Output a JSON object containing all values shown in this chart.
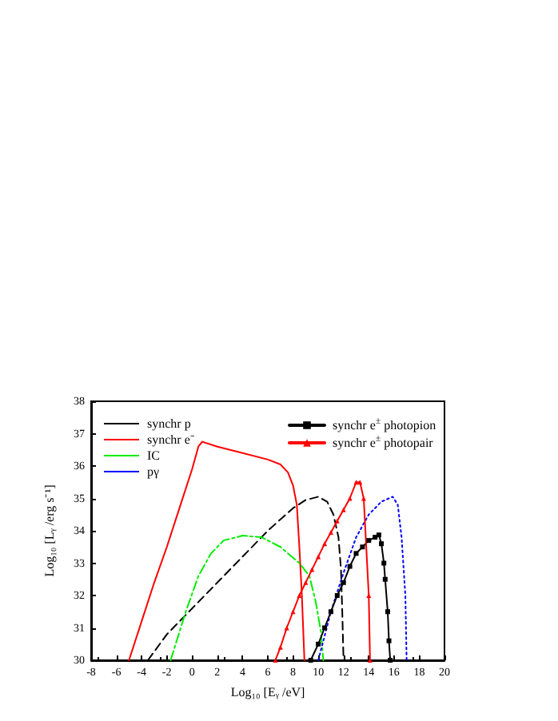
{
  "chart_data": {
    "type": "line",
    "xlabel": "Log₁₀ [Eᵧ /eV]",
    "ylabel": "Log₁₀ [Lᵧ /erg s⁻¹]",
    "xlim": [
      -8,
      20
    ],
    "xticks": [
      -8,
      -6,
      -4,
      -2,
      0,
      2,
      4,
      6,
      8,
      10,
      12,
      14,
      16,
      18,
      20
    ],
    "ylim": [
      30,
      38
    ],
    "yticks": [
      30,
      31,
      32,
      33,
      34,
      35,
      36,
      37,
      38
    ],
    "grid": false,
    "legend": "top",
    "series": [
      {
        "name": "synchr p",
        "color": "#000000",
        "line_style": "dashed",
        "marker": "none",
        "x": [
          -3.5,
          -2,
          0,
          2,
          4,
          6,
          8,
          9,
          10,
          10.7,
          11.2,
          11.6,
          11.8,
          11.9,
          12
        ],
        "values": [
          30,
          30.8,
          31.6,
          32.4,
          33.2,
          34.0,
          34.7,
          34.95,
          35.05,
          34.9,
          34.5,
          33.8,
          32.8,
          31.5,
          30
        ]
      },
      {
        "name": "synchr e⁻",
        "color": "#ff0000",
        "line_style": "solid",
        "marker": "none",
        "x": [
          -5,
          -4,
          -3,
          -2,
          -1,
          0,
          0.5,
          0.8,
          2,
          4,
          6,
          7,
          7.6,
          8,
          8.3,
          8.5,
          8.7,
          8.8,
          8.9
        ],
        "values": [
          30,
          31.2,
          32.4,
          33.5,
          34.7,
          35.9,
          36.6,
          36.75,
          36.6,
          36.4,
          36.2,
          36.05,
          35.8,
          35.4,
          34.8,
          33.5,
          32,
          31,
          30
        ]
      },
      {
        "name": "IC",
        "color": "#00ee00",
        "line_style": "dashdot",
        "marker": "none",
        "x": [
          -1.7,
          -0.5,
          0.5,
          1.5,
          2.5,
          4,
          5.5,
          7,
          8.5,
          9.3,
          9.8,
          10.2,
          10.4
        ],
        "values": [
          30,
          31.5,
          32.6,
          33.3,
          33.7,
          33.85,
          33.8,
          33.5,
          33.0,
          32.6,
          31.8,
          30.9,
          30
        ]
      },
      {
        "name": "pγ",
        "color": "#0000ff",
        "line_style": "dotted",
        "marker": "none",
        "x": [
          10,
          11,
          12,
          13,
          14,
          15,
          15.9,
          16.3,
          16.6,
          16.9,
          17
        ],
        "values": [
          30,
          31.5,
          32.7,
          33.8,
          34.5,
          34.9,
          35.05,
          34.8,
          33.8,
          32,
          30
        ]
      },
      {
        "name": "synchr e$^{±}$ photopion",
        "color": "#000000",
        "line_style": "solid",
        "marker": "square",
        "x": [
          9.4,
          10,
          10.5,
          11,
          11.5,
          12,
          12.5,
          13,
          13.5,
          14,
          14.5,
          14.8,
          15,
          15.2,
          15.3,
          15.5,
          15.6,
          15.7
        ],
        "values": [
          30,
          30.5,
          31,
          31.5,
          32,
          32.4,
          32.9,
          33.3,
          33.5,
          33.7,
          33.8,
          33.87,
          33.6,
          33.0,
          32.5,
          31.5,
          30.6,
          30
        ]
      },
      {
        "name": "synchr e$^{±}$ photopair",
        "color": "#ff0000",
        "line_style": "solid",
        "marker": "triangle",
        "x": [
          6.6,
          7,
          7.5,
          8,
          8.5,
          9,
          9.5,
          10,
          10.5,
          11,
          11.5,
          12,
          12.5,
          13,
          13.3,
          13.6,
          14,
          14.1
        ],
        "values": [
          30,
          30.4,
          31,
          31.5,
          32,
          32.4,
          32.8,
          33.2,
          33.6,
          33.95,
          34.3,
          34.65,
          35,
          35.5,
          35.5,
          35,
          32,
          30
        ]
      }
    ]
  }
}
